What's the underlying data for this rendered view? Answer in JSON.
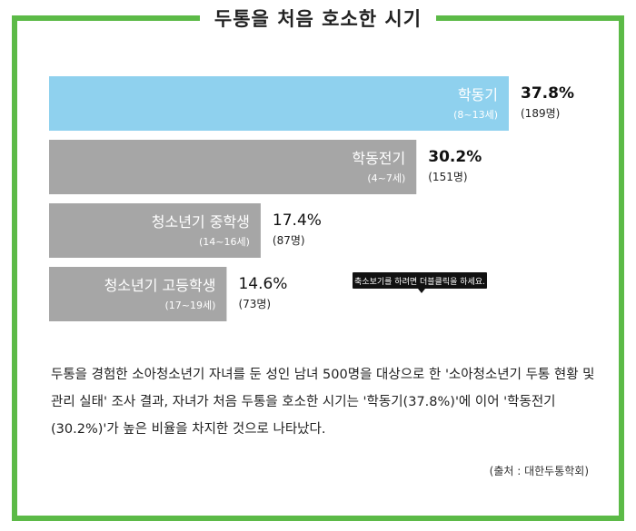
{
  "title": "두통을 처음 호소한 시기",
  "tooltip": "축소보기를 하려면 더블클릭을 하세요.",
  "description": "두통을 경험한 소아청소년기 자녀를 둔 성인 남녀 500명을 대상으로 한 '소아청소년기 두통 현황 및 관리 실태' 조사 결과, 자녀가 처음 두통을 호소한 시기는 '학동기(37.8%)'에 이어 '학동전기(30.2%)'가 높은 비율을 차지한 것으로 나타났다.",
  "source": "(출처 : 대한두통학회)",
  "colors": {
    "highlight": "#8fd1ee",
    "bar": "#a6a6a6",
    "frame": "#5cba47"
  },
  "chart_data": {
    "type": "bar",
    "orientation": "horizontal",
    "title": "두통을 처음 호소한 시기",
    "xlim": [
      0,
      37.8
    ],
    "bars": [
      {
        "label": "학동기",
        "sub": "(8~13세)",
        "value": 37.8,
        "value_label": "37.8%",
        "count_label": "(189명)",
        "highlight": true
      },
      {
        "label": "학동전기",
        "sub": "(4~7세)",
        "value": 30.2,
        "value_label": "30.2%",
        "count_label": "(151명)",
        "highlight": false
      },
      {
        "label": "청소년기 중학생",
        "sub": "(14~16세)",
        "value": 17.4,
        "value_label": "17.4%",
        "count_label": "(87명)",
        "highlight": false
      },
      {
        "label": "청소년기 고등학생",
        "sub": "(17~19세)",
        "value": 14.6,
        "value_label": "14.6%",
        "count_label": "(73명)",
        "highlight": false
      }
    ]
  }
}
